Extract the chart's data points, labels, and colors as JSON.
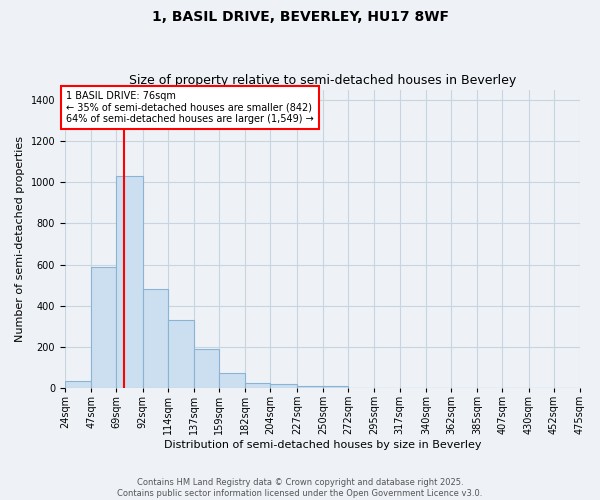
{
  "title1": "1, BASIL DRIVE, BEVERLEY, HU17 8WF",
  "title2": "Size of property relative to semi-detached houses in Beverley",
  "xlabel": "Distribution of semi-detached houses by size in Beverley",
  "ylabel": "Number of semi-detached properties",
  "bar_values": [
    35,
    590,
    1030,
    480,
    330,
    190,
    75,
    25,
    20,
    10,
    10,
    0,
    0,
    0,
    0,
    0,
    0,
    0,
    0,
    0
  ],
  "bin_labels": [
    "24sqm",
    "47sqm",
    "69sqm",
    "92sqm",
    "114sqm",
    "137sqm",
    "159sqm",
    "182sqm",
    "204sqm",
    "227sqm",
    "250sqm",
    "272sqm",
    "295sqm",
    "317sqm",
    "340sqm",
    "362sqm",
    "385sqm",
    "407sqm",
    "430sqm",
    "452sqm",
    "475sqm"
  ],
  "bin_edges": [
    24,
    47,
    69,
    92,
    114,
    137,
    159,
    182,
    204,
    227,
    250,
    272,
    295,
    317,
    340,
    362,
    385,
    407,
    430,
    452,
    475
  ],
  "bar_color": "#ccdff0",
  "bar_edge_color": "#8ab4d4",
  "vline_x": 76,
  "vline_color": "red",
  "annotation_text": "1 BASIL DRIVE: 76sqm\n← 35% of semi-detached houses are smaller (842)\n64% of semi-detached houses are larger (1,549) →",
  "annotation_box_color": "white",
  "annotation_box_edge_color": "red",
  "ylim": [
    0,
    1450
  ],
  "yticks": [
    0,
    200,
    400,
    600,
    800,
    1000,
    1200,
    1400
  ],
  "background_color": "#eef2f7",
  "grid_color": "#c8d4e0",
  "footer1": "Contains HM Land Registry data © Crown copyright and database right 2025.",
  "footer2": "Contains public sector information licensed under the Open Government Licence v3.0.",
  "title_fontsize": 10,
  "subtitle_fontsize": 9,
  "ylabel_fontsize": 8,
  "xlabel_fontsize": 8,
  "tick_fontsize": 7,
  "footer_fontsize": 6,
  "annotation_fontsize": 7
}
